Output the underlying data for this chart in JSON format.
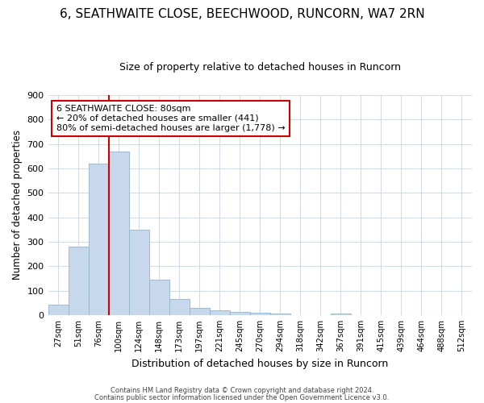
{
  "title": "6, SEATHWAITE CLOSE, BEECHWOOD, RUNCORN, WA7 2RN",
  "subtitle": "Size of property relative to detached houses in Runcorn",
  "xlabel": "Distribution of detached houses by size in Runcorn",
  "ylabel": "Number of detached properties",
  "bins": [
    "27sqm",
    "51sqm",
    "76sqm",
    "100sqm",
    "124sqm",
    "148sqm",
    "173sqm",
    "197sqm",
    "221sqm",
    "245sqm",
    "270sqm",
    "294sqm",
    "318sqm",
    "342sqm",
    "367sqm",
    "391sqm",
    "415sqm",
    "439sqm",
    "464sqm",
    "488sqm",
    "512sqm"
  ],
  "values": [
    44,
    280,
    620,
    670,
    350,
    145,
    65,
    30,
    20,
    12,
    10,
    8,
    0,
    0,
    8,
    0,
    0,
    0,
    0,
    0,
    0
  ],
  "bar_color": "#c8d8ec",
  "bar_edge_color": "#92b4d0",
  "red_line_color": "#cc0000",
  "red_line_x": 2.5,
  "annotation_line1": "6 SEATHWAITE CLOSE: 80sqm",
  "annotation_line2": "← 20% of detached houses are smaller (441)",
  "annotation_line3": "80% of semi-detached houses are larger (1,778) →",
  "annotation_box_color": "#cc0000",
  "ylim": [
    0,
    900
  ],
  "yticks": [
    0,
    100,
    200,
    300,
    400,
    500,
    600,
    700,
    800,
    900
  ],
  "footer_line1": "Contains HM Land Registry data © Crown copyright and database right 2024.",
  "footer_line2": "Contains public sector information licensed under the Open Government Licence v3.0.",
  "background_color": "#ffffff",
  "grid_color": "#d0dce8",
  "title_fontsize": 11,
  "subtitle_fontsize": 9
}
